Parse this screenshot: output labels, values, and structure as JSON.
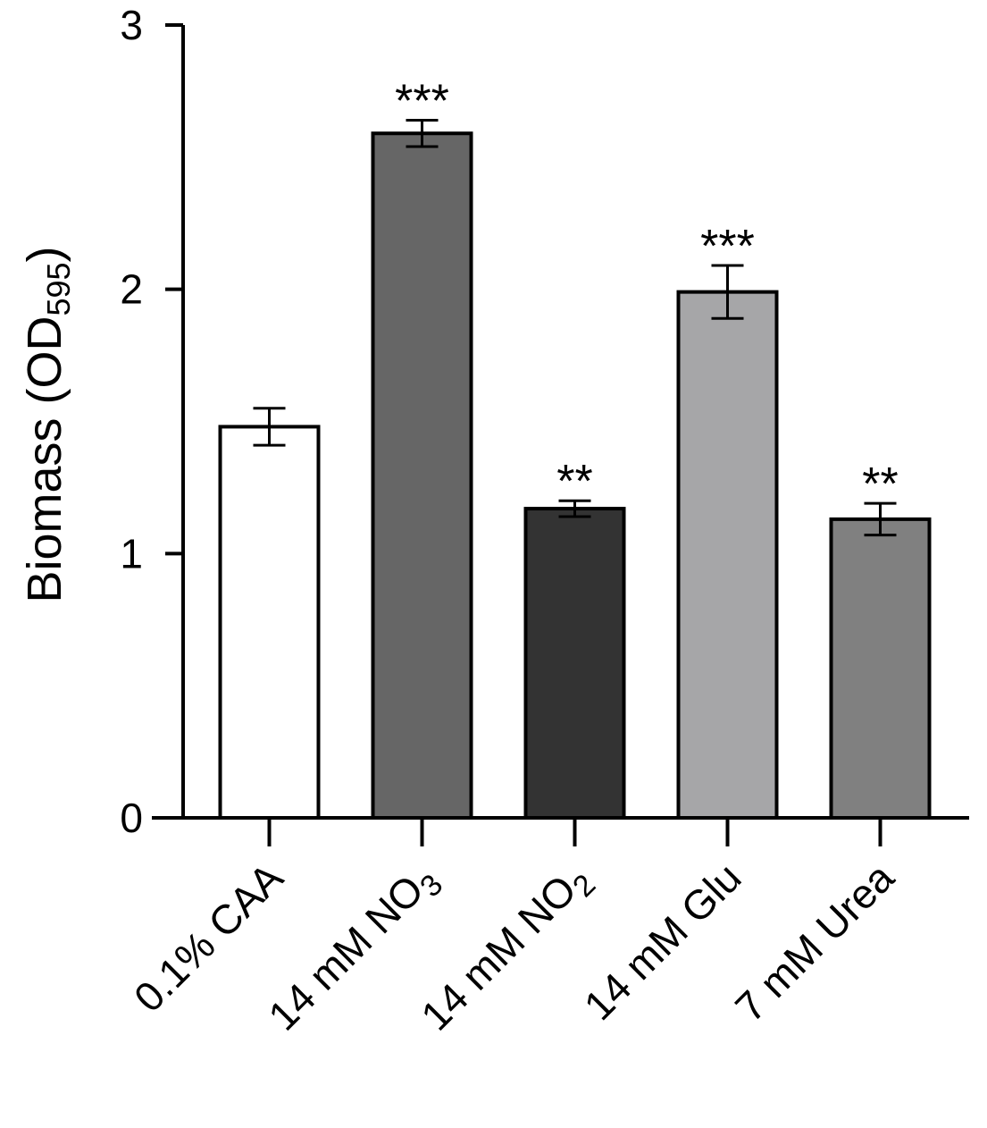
{
  "chart_data": {
    "type": "bar",
    "title": "",
    "xlabel": "",
    "ylabel": "Biomass (OD595)",
    "ylabel_parts": {
      "main": "Biomass (OD",
      "sub": "595",
      "close": ")"
    },
    "ylim": [
      0,
      3
    ],
    "yticks": [
      "0",
      "1",
      "2",
      "3"
    ],
    "categories": [
      "0.1% CAA",
      "14 mM NO3",
      "14 mM NO2",
      "14 mM Glu",
      "7 mM Urea"
    ],
    "category_labels": [
      {
        "main": "0.1% CAA",
        "sub": ""
      },
      {
        "main": "14 mM NO",
        "sub": "3"
      },
      {
        "main": "14 mM NO",
        "sub": "2"
      },
      {
        "main": "14 mM Glu",
        "sub": ""
      },
      {
        "main": "7 mM Urea",
        "sub": ""
      }
    ],
    "values": [
      1.48,
      2.59,
      1.17,
      1.99,
      1.13
    ],
    "errors": [
      0.07,
      0.05,
      0.03,
      0.1,
      0.06
    ],
    "significance": [
      "",
      "***",
      "**",
      "***",
      "**"
    ],
    "colors": [
      "#ffffff",
      "#666666",
      "#333333",
      "#a6a6a8",
      "#808080"
    ],
    "grid": false,
    "legend": "none"
  }
}
